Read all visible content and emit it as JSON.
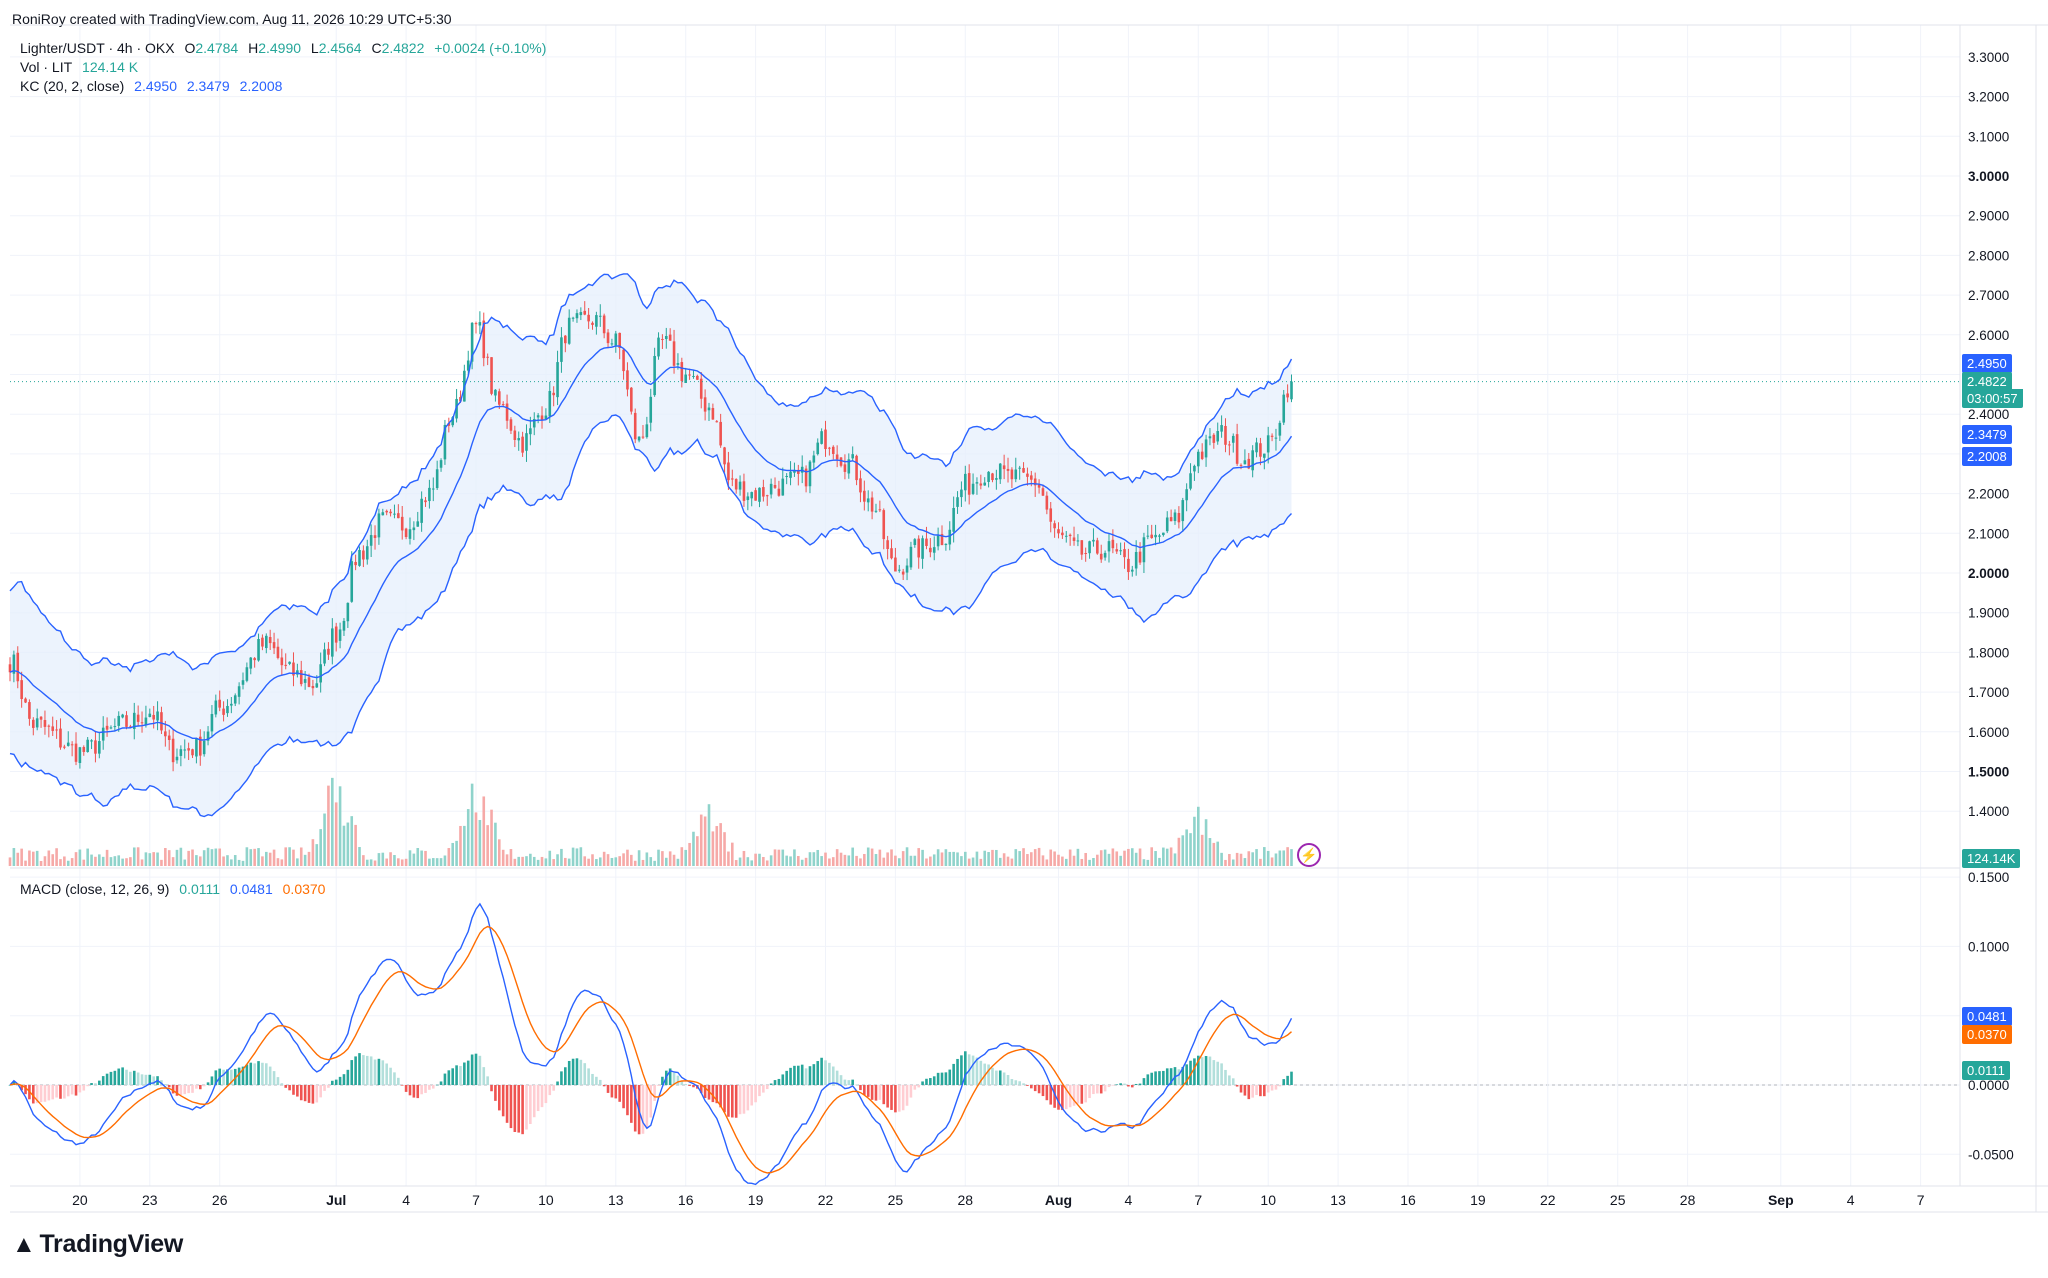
{
  "header": {
    "credit": "RoniRoy created with TradingView.com, Aug 11, 2026 10:29 UTC+5:30"
  },
  "legend": {
    "symbol": "Lighter/USDT · 4h · OKX",
    "o_label": "O",
    "o": "2.4784",
    "h_label": "H",
    "h": "2.4990",
    "l_label": "L",
    "l": "2.4564",
    "c_label": "C",
    "c": "2.4822",
    "change": "+0.0024 (+0.10%)",
    "vol_label": "Vol · LIT",
    "vol": "124.14 K",
    "kc_label": "KC (20, 2, close)",
    "kc_upper": "2.4950",
    "kc_mid": "2.3479",
    "kc_lower": "2.2008",
    "macd_label": "MACD (close, 12, 26, 9)",
    "macd_hist": "0.0111",
    "macd_line": "0.0481",
    "macd_signal": "0.0370"
  },
  "price_tags": {
    "kc_upper": "2.4950",
    "last": "2.4822",
    "countdown": "03:00:57",
    "kc_mid": "2.3479",
    "kc_lower": "2.2008",
    "volume": "124.14K",
    "macd_line": "0.0481",
    "macd_signal": "0.0370",
    "macd_hist": "0.0111"
  },
  "colors": {
    "up": "#26a69a",
    "down": "#ef5350",
    "vol_up": "#8fd3cb",
    "vol_down": "#f6a9a7",
    "kc": "#2962ff",
    "kc_fill": "#e6effc",
    "macd": "#2962ff",
    "signal": "#ff6d00",
    "hist_up_strong": "#26a69a",
    "hist_up_weak": "#b2dfdb",
    "hist_down_strong": "#ef5350",
    "hist_down_weak": "#ffcdd2",
    "grid": "#f0f3fa"
  },
  "logo": {
    "text": "TradingView",
    "icon": "tradingview-logo-icon"
  },
  "chart_data": [
    {
      "type": "candlestick",
      "title": "Lighter/USDT · 4h · OKX",
      "x_ticks": [
        "20",
        "23",
        "26",
        "Jul",
        "4",
        "7",
        "10",
        "13",
        "16",
        "19",
        "22",
        "25",
        "28",
        "Aug",
        "4",
        "7",
        "10",
        "13",
        "16",
        "19",
        "22",
        "25",
        "28",
        "Sep",
        "4",
        "7"
      ],
      "y_ticks": [
        "3.3000",
        "3.2000",
        "3.1000",
        "3.0000",
        "2.9000",
        "2.8000",
        "2.7000",
        "2.6000",
        "2.5000",
        "2.4000",
        "2.3000",
        "2.2000",
        "2.1000",
        "2.0000",
        "1.9000",
        "1.8000",
        "1.7000",
        "1.6000",
        "1.5000",
        "1.4000"
      ],
      "y_range": [
        1.35,
        3.35
      ],
      "close_anchors": [
        {
          "x": "Jun 17",
          "close": 1.78
        },
        {
          "x": "Jun 18",
          "close": 1.62
        },
        {
          "x": "Jun 20",
          "close": 1.55
        },
        {
          "x": "Jun 22",
          "close": 1.62
        },
        {
          "x": "Jun 23",
          "close": 1.65
        },
        {
          "x": "Jun 24",
          "close": 1.55
        },
        {
          "x": "Jun 25",
          "close": 1.56
        },
        {
          "x": "Jun 26",
          "close": 1.66
        },
        {
          "x": "Jun 28",
          "close": 1.82
        },
        {
          "x": "Jun 29",
          "close": 1.75
        },
        {
          "x": "Jun 30",
          "close": 1.72
        },
        {
          "x": "Jul 1",
          "close": 1.85
        },
        {
          "x": "Jul 2",
          "close": 2.05
        },
        {
          "x": "Jul 3",
          "close": 2.13
        },
        {
          "x": "Jul 4",
          "close": 2.12
        },
        {
          "x": "Jul 5",
          "close": 2.2
        },
        {
          "x": "Jul 6",
          "close": 2.4
        },
        {
          "x": "Jul 7",
          "close": 2.62
        },
        {
          "x": "Jul 8",
          "close": 2.42
        },
        {
          "x": "Jul 9",
          "close": 2.33
        },
        {
          "x": "Jul 10",
          "close": 2.42
        },
        {
          "x": "Jul 11",
          "close": 2.62
        },
        {
          "x": "Jul 12",
          "close": 2.64
        },
        {
          "x": "Jul 13",
          "close": 2.58
        },
        {
          "x": "Jul 14",
          "close": 2.33
        },
        {
          "x": "Jul 15",
          "close": 2.58
        },
        {
          "x": "Jul 16",
          "close": 2.5
        },
        {
          "x": "Jul 17",
          "close": 2.42
        },
        {
          "x": "Jul 18",
          "close": 2.22
        },
        {
          "x": "Jul 19",
          "close": 2.2
        },
        {
          "x": "Jul 20",
          "close": 2.22
        },
        {
          "x": "Jul 21",
          "close": 2.24
        },
        {
          "x": "Jul 22",
          "close": 2.34
        },
        {
          "x": "Jul 23",
          "close": 2.28
        },
        {
          "x": "Jul 24",
          "close": 2.17
        },
        {
          "x": "Jul 25",
          "close": 2.01
        },
        {
          "x": "Jul 26",
          "close": 2.06
        },
        {
          "x": "Jul 27",
          "close": 2.09
        },
        {
          "x": "Jul 28",
          "close": 2.22
        },
        {
          "x": "Jul 29",
          "close": 2.26
        },
        {
          "x": "Jul 30",
          "close": 2.24
        },
        {
          "x": "Jul 31",
          "close": 2.23
        },
        {
          "x": "Aug 1",
          "close": 2.09
        },
        {
          "x": "Aug 2",
          "close": 2.05
        },
        {
          "x": "Aug 3",
          "close": 2.06
        },
        {
          "x": "Aug 4",
          "close": 2.02
        },
        {
          "x": "Aug 5",
          "close": 2.08
        },
        {
          "x": "Aug 6",
          "close": 2.13
        },
        {
          "x": "Aug 7",
          "close": 2.3
        },
        {
          "x": "Aug 8",
          "close": 2.35
        },
        {
          "x": "Aug 9",
          "close": 2.29
        },
        {
          "x": "Aug 10",
          "close": 2.32
        },
        {
          "x": "Aug 11",
          "close": 2.4822
        }
      ]
    },
    {
      "type": "bar",
      "title": "Vol · LIT",
      "last_value": "124.14K",
      "spikes": [
        {
          "x": "Jul 1",
          "level": "high"
        },
        {
          "x": "Jul 7",
          "level": "medium"
        },
        {
          "x": "Jul 17",
          "level": "low"
        },
        {
          "x": "Aug 7",
          "level": "low"
        }
      ]
    },
    {
      "type": "line",
      "title": "MACD (close, 12, 26, 9)",
      "y_ticks": [
        "0.1500",
        "0.1000",
        "0.0500",
        "0.0000",
        "-0.0500"
      ],
      "y_range": [
        -0.072,
        0.155
      ],
      "series": [
        {
          "name": "MACD",
          "last": 0.0481
        },
        {
          "name": "Signal",
          "last": 0.037
        },
        {
          "name": "Histogram",
          "last": 0.0111
        }
      ]
    }
  ]
}
